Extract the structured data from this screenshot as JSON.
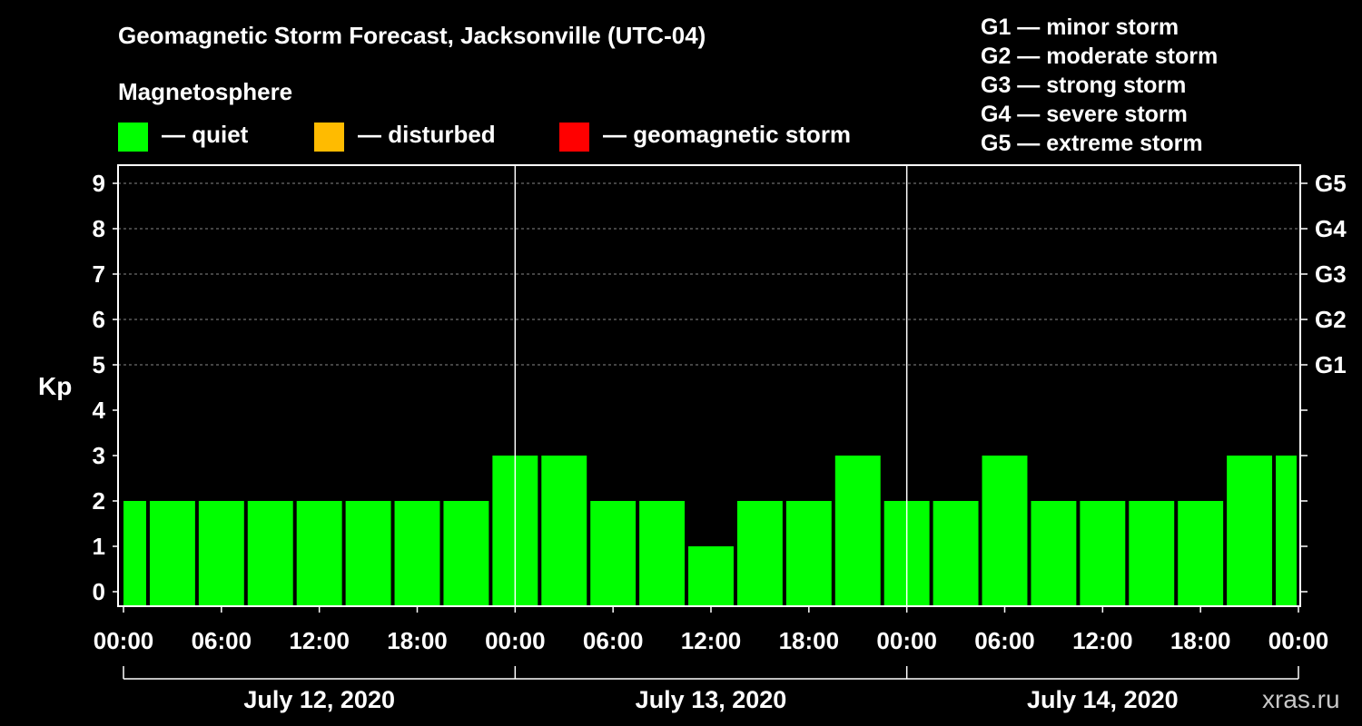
{
  "chart_data": {
    "type": "bar",
    "title": "Geomagnetic Storm Forecast, Jacksonville (UTC-04)",
    "subtitle": "Magnetosphere",
    "ylabel": "Kp",
    "ylim": [
      0,
      9
    ],
    "yticks": [
      "0",
      "1",
      "2",
      "3",
      "4",
      "5",
      "6",
      "7",
      "8",
      "9"
    ],
    "right_ticks": [
      {
        "kp": 5,
        "label": "G1"
      },
      {
        "kp": 6,
        "label": "G2"
      },
      {
        "kp": 7,
        "label": "G3"
      },
      {
        "kp": 8,
        "label": "G4"
      },
      {
        "kp": 9,
        "label": "G5"
      }
    ],
    "xticks": [
      "00:00",
      "06:00",
      "12:00",
      "18:00",
      "00:00",
      "06:00",
      "12:00",
      "18:00",
      "00:00",
      "06:00",
      "12:00",
      "18:00",
      "00:00"
    ],
    "days": [
      "July 12, 2020",
      "July 13, 2020",
      "July 14, 2020"
    ],
    "interval_hours": 3,
    "values": [
      2,
      2,
      2,
      2,
      2,
      2,
      2,
      2,
      3,
      3,
      2,
      2,
      1,
      2,
      2,
      3,
      2,
      2,
      3,
      2,
      2,
      2,
      2,
      3,
      3
    ],
    "bar_color": "#00ff00",
    "legend": [
      {
        "label": "— quiet",
        "color": "#00ff00"
      },
      {
        "label": "— disturbed",
        "color": "#ffbb00"
      },
      {
        "label": "— geomagnetic storm",
        "color": "#ff0000"
      }
    ],
    "storm_scale": [
      "G1 — minor storm",
      "G2 — moderate storm",
      "G3 — strong storm",
      "G4 — severe storm",
      "G5 — extreme storm"
    ],
    "grid": true
  },
  "watermark": "xras.ru"
}
